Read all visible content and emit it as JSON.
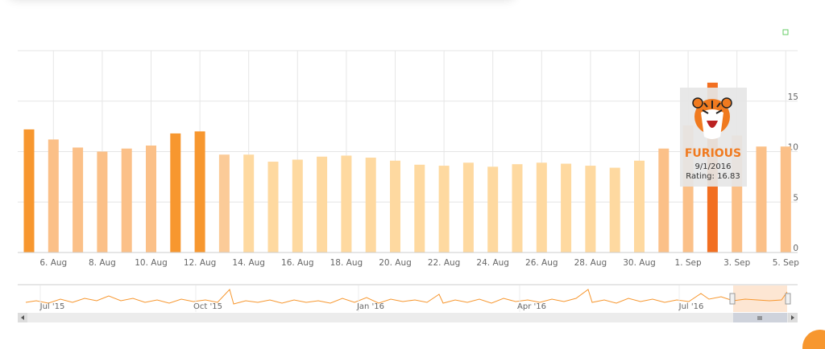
{
  "chart_data": {
    "type": "bar",
    "categories": [
      null,
      "6. Aug",
      null,
      "8. Aug",
      null,
      "10. Aug",
      null,
      "12. Aug",
      null,
      "14. Aug",
      null,
      "16. Aug",
      null,
      "18. Aug",
      null,
      "20. Aug",
      null,
      "22. Aug",
      null,
      "24. Aug",
      null,
      "26. Aug",
      null,
      "28. Aug",
      null,
      "30. Aug",
      null,
      "1. Sep",
      null,
      "3. Sep",
      null,
      "5. Sep"
    ],
    "values": [
      12.2,
      11.2,
      10.4,
      10.0,
      10.3,
      10.6,
      11.8,
      12.0,
      9.7,
      9.7,
      9.0,
      9.2,
      9.5,
      9.6,
      9.4,
      9.1,
      8.7,
      8.6,
      8.9,
      8.5,
      8.75,
      8.9,
      8.8,
      8.6,
      8.4,
      9.1,
      10.3,
      12.6,
      16.83,
      11.6,
      10.5,
      10.5
    ],
    "colors": [
      "#f7972f",
      "#fbc088",
      "#fbc088",
      "#fbc088",
      "#fbc088",
      "#fbc088",
      "#f7972f",
      "#f7972f",
      "#fbcb98",
      "#fed9a0",
      "#fed9a0",
      "#fed9a0",
      "#fed9a0",
      "#fed9a0",
      "#fed9a0",
      "#fed9a0",
      "#fed9a0",
      "#fed9a0",
      "#fed9a0",
      "#fed9a0",
      "#fed9a0",
      "#fed9a0",
      "#fed9a0",
      "#fed9a0",
      "#fed9a0",
      "#fed9a0",
      "#fbc088",
      "#fbc088",
      "#f26f21",
      "#fbc088",
      "#fbc088",
      "#fbc088"
    ],
    "ylim": [
      0,
      20
    ],
    "yticks": [
      0,
      5,
      10,
      15
    ],
    "grid": true,
    "tooltip": {
      "title": "FURIOUS",
      "date": "9/1/2016",
      "text": "Rating: 16.83"
    },
    "navigator": {
      "labels": [
        "Jul '15",
        "Oct '15",
        "Jan '16",
        "Apr '16",
        "Jul '16"
      ]
    }
  }
}
